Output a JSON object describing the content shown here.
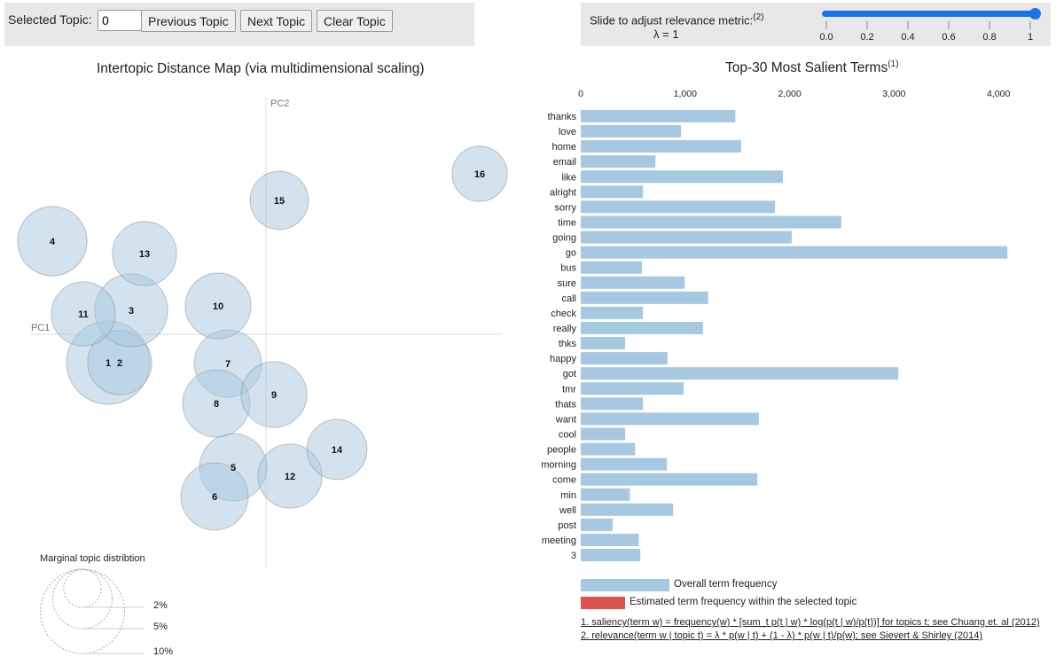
{
  "controls": {
    "selected_topic_label": "Selected Topic:",
    "selected_topic_value": "0",
    "previous_topic": "Previous Topic",
    "next_topic": "Next Topic",
    "clear_topic": "Clear Topic"
  },
  "relevance": {
    "label": "Slide to adjust relevance metric:",
    "label_note": "(2)",
    "lambda_text": "λ = 1",
    "lambda_value": 1,
    "ticks": [
      "0.0",
      "0.2",
      "0.4",
      "0.6",
      "0.8",
      "1"
    ]
  },
  "colors": {
    "bar_overall": "#a6c8e0",
    "bar_topic": "#d9534f",
    "circle_fill": "#a6c8e0",
    "slider": "#1a73e8"
  },
  "chart_data": [
    {
      "type": "scatter",
      "title": "Intertopic Distance Map (via multidimensional scaling)",
      "xlabel": "PC1",
      "ylabel": "PC2",
      "xlim": [
        -2.7,
        2.7
      ],
      "ylim": [
        -2.65,
        2.65
      ],
      "topics": [
        {
          "id": "1",
          "pc1": -1.78,
          "pc2": -0.32,
          "marginal_pct": 9.8
        },
        {
          "id": "2",
          "pc1": -1.65,
          "pc2": -0.32,
          "marginal_pct": 5.8
        },
        {
          "id": "3",
          "pc1": -1.52,
          "pc2": 0.27,
          "marginal_pct": 7.5
        },
        {
          "id": "4",
          "pc1": -2.41,
          "pc2": 1.05,
          "marginal_pct": 6.8
        },
        {
          "id": "5",
          "pc1": -0.37,
          "pc2": -1.5,
          "marginal_pct": 6.4
        },
        {
          "id": "6",
          "pc1": -0.58,
          "pc2": -1.83,
          "marginal_pct": 6.4
        },
        {
          "id": "7",
          "pc1": -0.43,
          "pc2": -0.33,
          "marginal_pct": 6.4
        },
        {
          "id": "8",
          "pc1": -0.56,
          "pc2": -0.78,
          "marginal_pct": 6.4
        },
        {
          "id": "9",
          "pc1": 0.09,
          "pc2": -0.68,
          "marginal_pct": 6.1
        },
        {
          "id": "10",
          "pc1": -0.54,
          "pc2": 0.32,
          "marginal_pct": 6.1
        },
        {
          "id": "11",
          "pc1": -2.06,
          "pc2": 0.23,
          "marginal_pct": 5.8
        },
        {
          "id": "12",
          "pc1": 0.27,
          "pc2": -1.6,
          "marginal_pct": 5.8
        },
        {
          "id": "13",
          "pc1": -1.37,
          "pc2": 0.91,
          "marginal_pct": 5.8
        },
        {
          "id": "14",
          "pc1": 0.8,
          "pc2": -1.3,
          "marginal_pct": 5.1
        },
        {
          "id": "15",
          "pc1": 0.15,
          "pc2": 1.51,
          "marginal_pct": 4.8
        },
        {
          "id": "16",
          "pc1": 2.41,
          "pc2": 1.81,
          "marginal_pct": 4.3
        }
      ],
      "size_legend": {
        "title": "Marginal topic distribtion",
        "levels": [
          {
            "label": "2%",
            "pct": 2
          },
          {
            "label": "5%",
            "pct": 5
          },
          {
            "label": "10%",
            "pct": 10
          }
        ]
      }
    },
    {
      "type": "bar",
      "orientation": "horizontal",
      "title": "Top-30 Most Salient Terms",
      "title_note": "(1)",
      "xlim": [
        0,
        4200
      ],
      "xticks": [
        0,
        1000,
        2000,
        3000,
        4000
      ],
      "xtick_labels": [
        "0",
        "1,000",
        "2,000",
        "3,000",
        "4,000"
      ],
      "categories": [
        "thanks",
        "love",
        "home",
        "email",
        "like",
        "alright",
        "sorry",
        "time",
        "going",
        "go",
        "bus",
        "sure",
        "call",
        "check",
        "really",
        "thks",
        "happy",
        "got",
        "tmr",
        "thats",
        "want",
        "cool",
        "people",
        "morning",
        "come",
        "min",
        "well",
        "post",
        "meeting",
        "3"
      ],
      "series": [
        {
          "name": "Overall term frequency",
          "values": [
            1480,
            960,
            1535,
            715,
            1935,
            595,
            1860,
            2495,
            2020,
            4085,
            585,
            995,
            1220,
            595,
            1170,
            425,
            830,
            3040,
            985,
            595,
            1705,
            425,
            520,
            825,
            1690,
            470,
            885,
            305,
            555,
            570
          ]
        }
      ],
      "legend": [
        {
          "label": "Overall term frequency",
          "color": "#a6c8e0"
        },
        {
          "label": "Estimated term frequency within the selected topic",
          "color": "#d9534f"
        }
      ]
    }
  ],
  "footnotes": [
    "1. saliency(term w) = frequency(w) * [sum_t p(t | w) * log(p(t | w)/p(t))] for topics t; see Chuang et. al (2012)",
    "2. relevance(term w | topic t) = λ * p(w | t) + (1 - λ) * p(w | t)/p(w); see Sievert & Shirley (2014)"
  ]
}
